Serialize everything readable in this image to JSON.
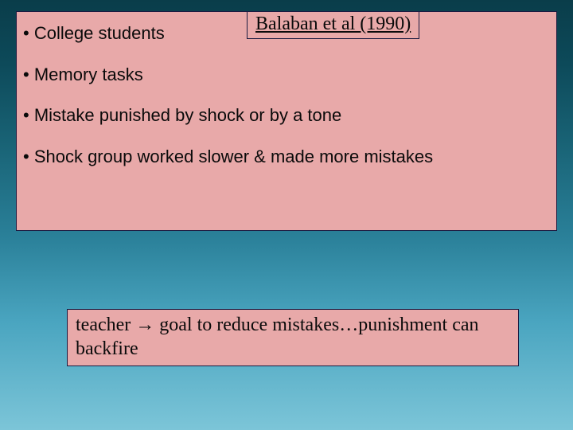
{
  "slide": {
    "background": {
      "gradient_stops": [
        "#0a3d4a",
        "#0d4a5a",
        "#1a6578",
        "#2a8099",
        "#4aa5c0",
        "#7cc5d8"
      ],
      "direction": "vertical"
    },
    "content_box": {
      "background_color": "#e8a9a9",
      "border_color": "#1a1a40",
      "bullets": [
        "• College students",
        "• Memory tasks",
        "• Mistake punished by shock or by a tone",
        "• Shock group worked slower & made more mistakes"
      ],
      "bullet_font": "Comic Sans MS",
      "bullet_fontsize": 22,
      "bullet_color": "#0a0a0a"
    },
    "citation": {
      "text": "Balaban et al (1990)",
      "background_color": "#e8a9a9",
      "border_color": "#1a1a40",
      "font": "Times New Roman",
      "fontsize": 24,
      "underline": true
    },
    "conclusion": {
      "text": "teacher → goal to reduce mistakes…punishment can backfire",
      "background_color": "#e8a9a9",
      "border_color": "#1a1a40",
      "font": "Times New Roman",
      "fontsize": 24
    }
  }
}
